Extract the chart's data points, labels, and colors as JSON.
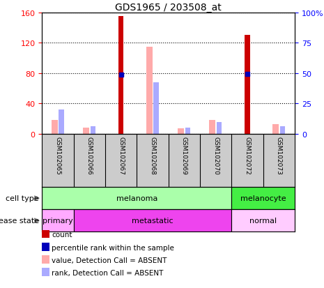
{
  "title": "GDS1965 / 203508_at",
  "samples": [
    "GSM102065",
    "GSM102066",
    "GSM102067",
    "GSM102068",
    "GSM102069",
    "GSM102070",
    "GSM102072",
    "GSM102073"
  ],
  "count_values": [
    0,
    0,
    155,
    0,
    0,
    0,
    130,
    0
  ],
  "count_color": "#cc0000",
  "absent_value_values": [
    18,
    8,
    0,
    115,
    7,
    18,
    0,
    12
  ],
  "absent_value_color": "#ffaaaa",
  "absent_rank_values": [
    32,
    10,
    0,
    68,
    8,
    15,
    0,
    10
  ],
  "absent_rank_color": "#aaaaff",
  "percentile_rank_values": [
    0,
    0,
    78,
    0,
    0,
    0,
    79,
    0
  ],
  "percentile_rank_color": "#0000bb",
  "ylim_left": [
    0,
    160
  ],
  "ylim_right": [
    0,
    100
  ],
  "yticks_left": [
    0,
    40,
    80,
    120,
    160
  ],
  "yticks_left_labels": [
    "0",
    "40",
    "80",
    "120",
    "160"
  ],
  "yticks_right": [
    0,
    25,
    50,
    75,
    100
  ],
  "yticks_right_labels": [
    "0",
    "25",
    "50",
    "75",
    "100%"
  ],
  "cell_types": [
    {
      "label": "melanoma",
      "start": 0,
      "end": 6,
      "color": "#aaffaa"
    },
    {
      "label": "melanocyte",
      "start": 6,
      "end": 8,
      "color": "#44ee44"
    }
  ],
  "disease_states": [
    {
      "label": "primary",
      "start": 0,
      "end": 1,
      "color": "#ffaaff"
    },
    {
      "label": "metastatic",
      "start": 1,
      "end": 6,
      "color": "#ee44ee"
    },
    {
      "label": "normal",
      "start": 6,
      "end": 8,
      "color": "#ffccff"
    }
  ],
  "legend_items": [
    {
      "label": "count",
      "color": "#cc0000"
    },
    {
      "label": "percentile rank within the sample",
      "color": "#0000bb"
    },
    {
      "label": "value, Detection Call = ABSENT",
      "color": "#ffaaaa"
    },
    {
      "label": "rank, Detection Call = ABSENT",
      "color": "#aaaaff"
    }
  ],
  "cell_type_label": "cell type",
  "disease_state_label": "disease state",
  "bg_color": "#cccccc",
  "plot_bg_color": "#ffffff",
  "bar_width": 0.18
}
